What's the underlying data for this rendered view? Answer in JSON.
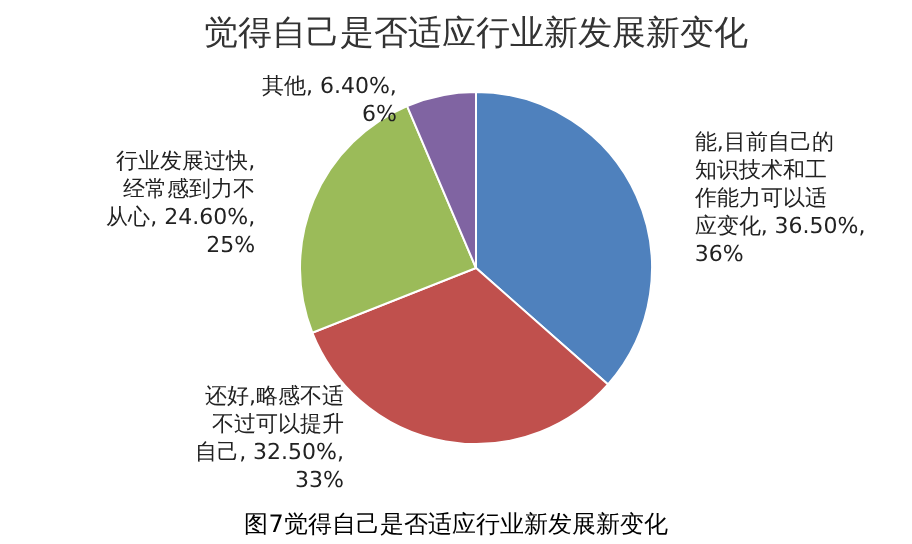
{
  "chart_data": {
    "type": "pie",
    "title": "觉得自己是否适应行业新发展新变化",
    "categories": [
      "能,目前自己的知识技术和工作能力可以适应变化",
      "还好,略感不适不过可以提升自己",
      "行业发展过快,经常感到力不从心",
      "其他"
    ],
    "values": [
      36.5,
      32.5,
      24.6,
      6.4
    ],
    "colors": [
      "#4f81bd",
      "#c0504d",
      "#9bbb59",
      "#8064a2"
    ],
    "value_labels": [
      "36.50%, 36%",
      "32.50%, 33%",
      "24.60%, 25%",
      "6.40%, 6%"
    ],
    "annotations": [
      "图7觉得自己是否适应行业新发展新变化"
    ]
  }
}
